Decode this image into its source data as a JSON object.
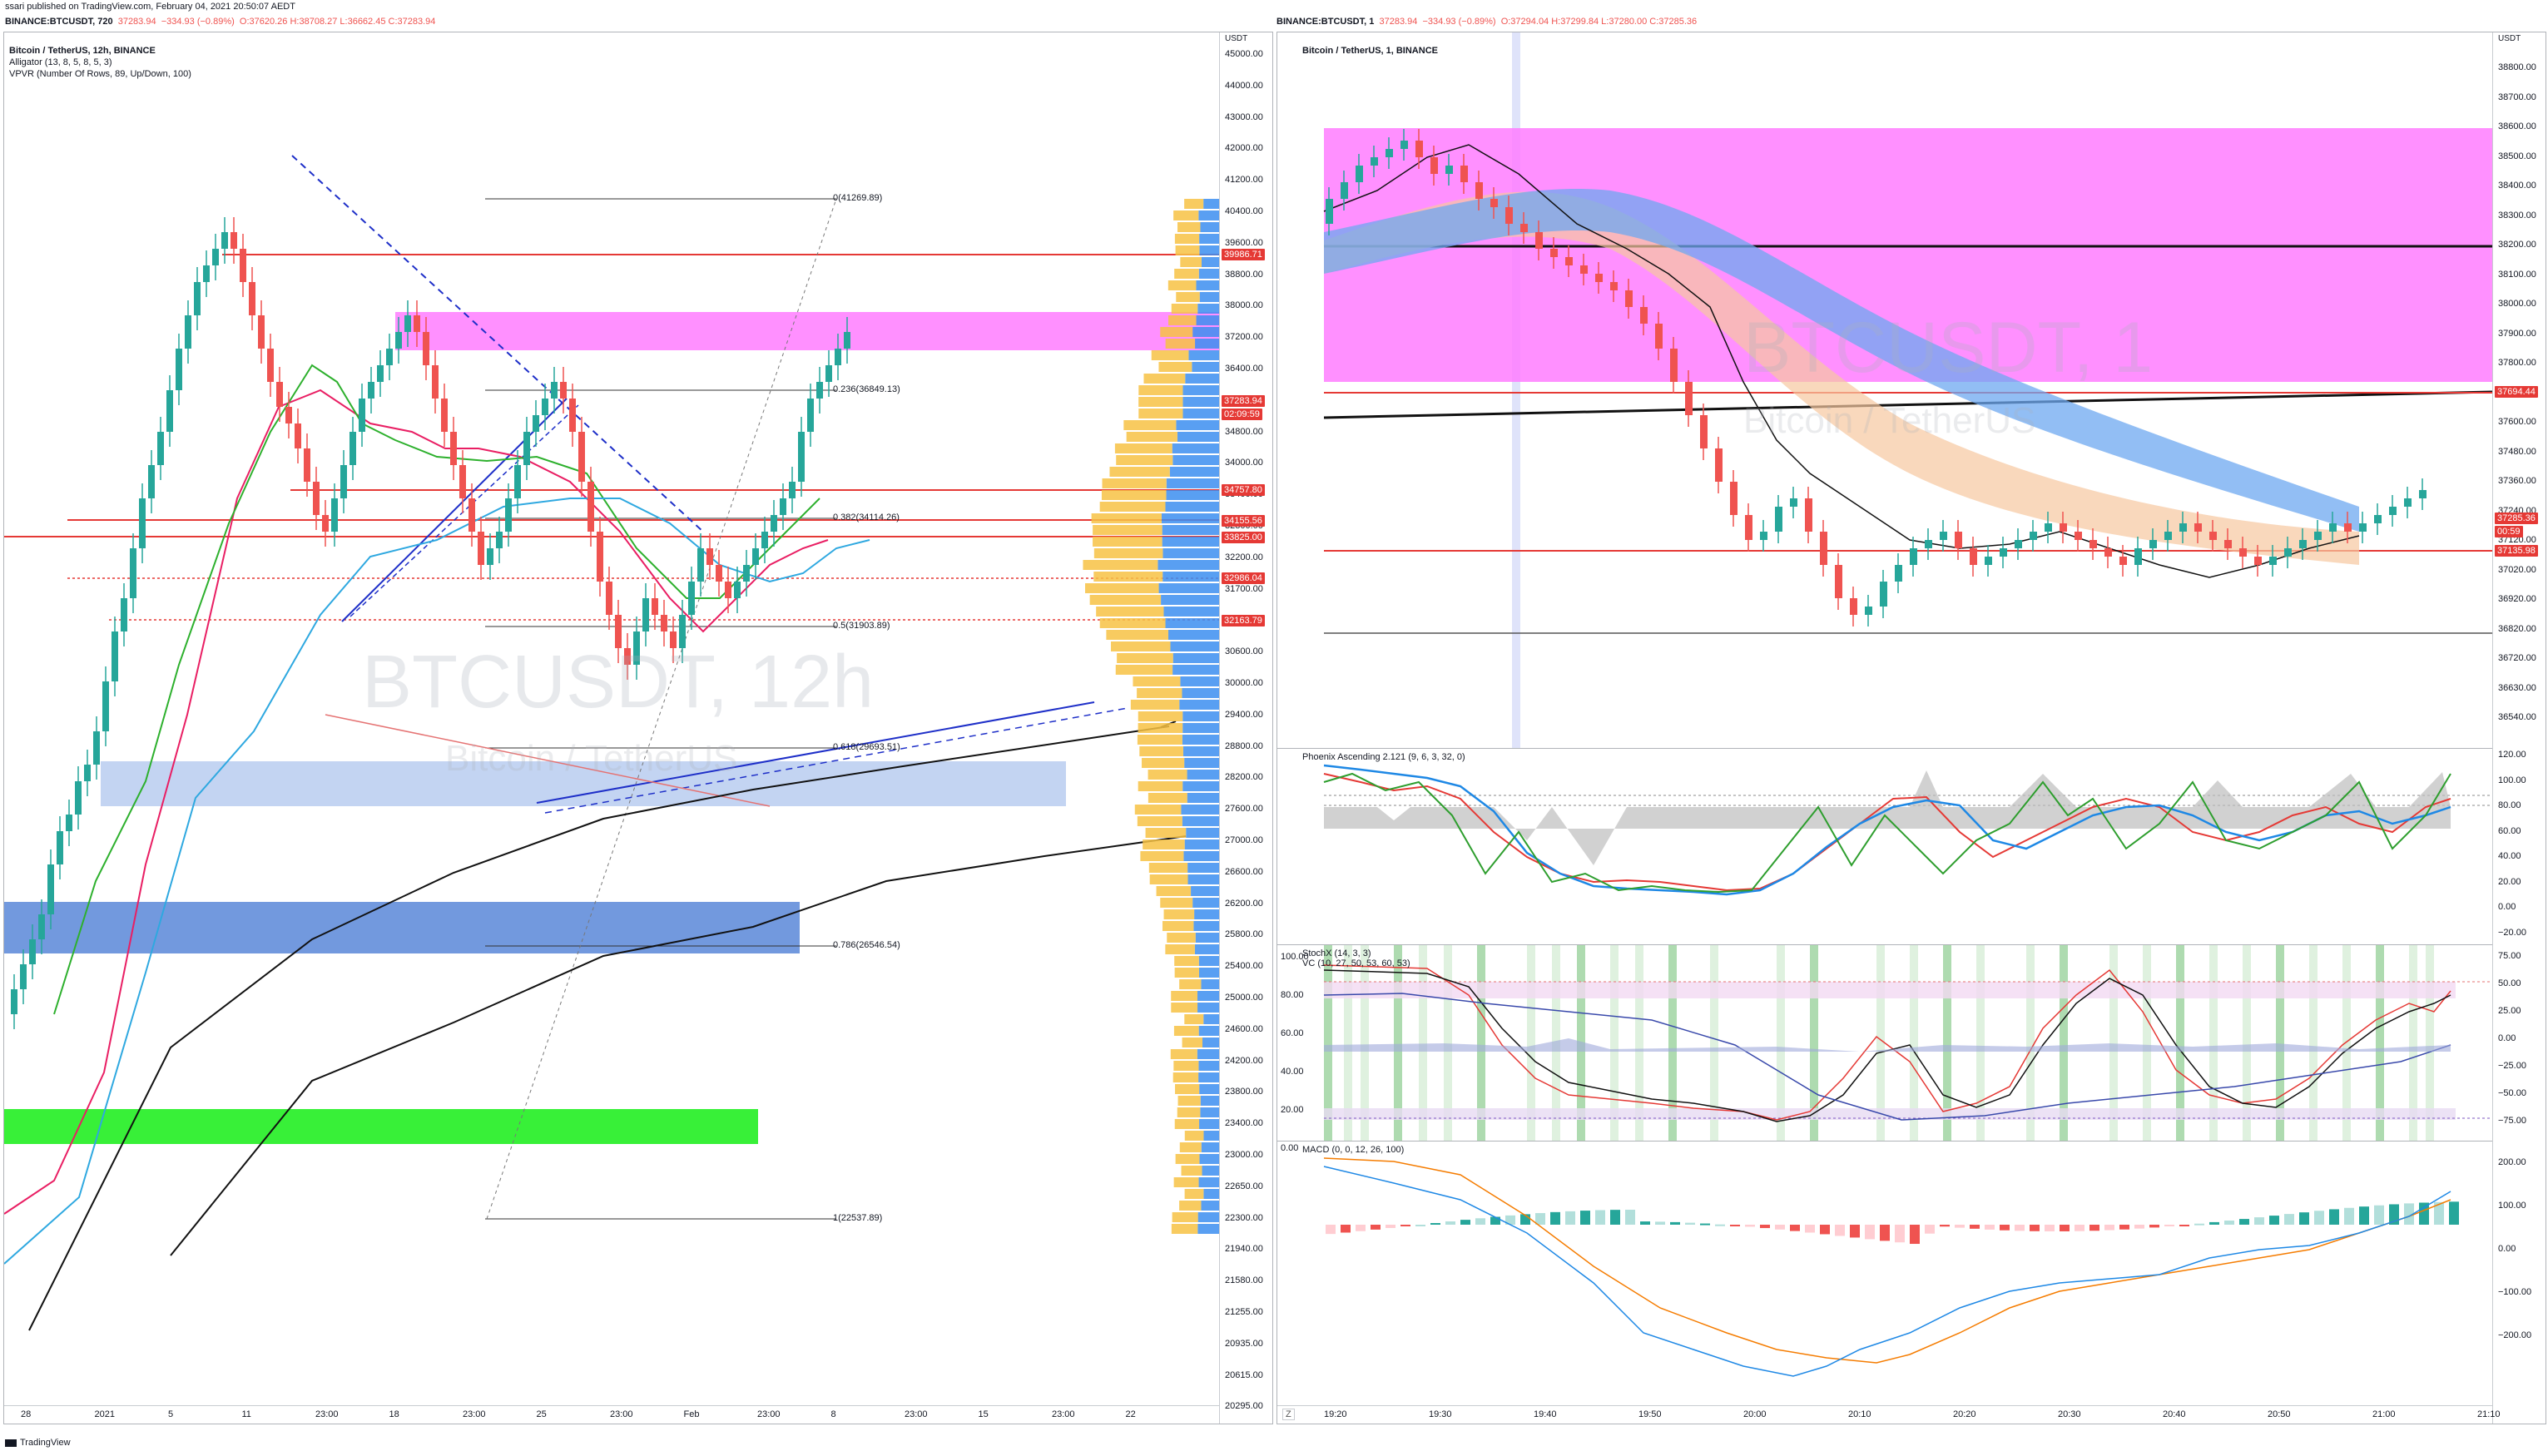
{
  "header": {
    "publisher": "ssari published on TradingView.com, February 04, 2021 20:50:07 AEDT",
    "left_symbol": "BINANCE:BTCUSDT, 720",
    "left_price": "37283.94",
    "left_change": "−334.93 (−0.89%)",
    "left_ohlc": "O:37620.26  H:38708.27  L:36662.45  C:37283.94",
    "right_symbol": "BINANCE:BTCUSDT, 1",
    "right_price": "37283.94",
    "right_change": "−334.93 (−0.89%)",
    "right_ohlc": "O:37294.04  H:37299.84  L:37280.00  C:37285.36"
  },
  "left_chart": {
    "title": "Bitcoin / TetherUS, 12h, BINANCE",
    "ind1": "Alligator (13, 8, 5, 8, 5, 3)",
    "ind2": "VPVR (Number Of Rows, 89, Up/Down, 100)",
    "watermark": "BTCUSDT, 12h",
    "watermark_sub": "Bitcoin / TetherUS",
    "currency": "USDT",
    "price_ticks": [
      "45000.00",
      "44000.00",
      "43000.00",
      "42000.00",
      "41200.00",
      "40400.00",
      "39600.00",
      "38800.00",
      "38000.00",
      "37200.00",
      "36400.00",
      "35600.00",
      "34800.00",
      "34000.00",
      "33400.00",
      "32800.00",
      "32200.00",
      "31700.00",
      "31200.00",
      "30600.00",
      "30000.00",
      "29400.00",
      "28800.00",
      "28200.00",
      "27600.00",
      "27000.00",
      "26600.00",
      "26200.00",
      "25800.00",
      "25400.00",
      "25000.00",
      "24600.00",
      "24200.00",
      "23800.00",
      "23400.00",
      "23000.00",
      "22650.00",
      "22300.00",
      "21940.00",
      "21580.00",
      "21255.00",
      "20935.00",
      "20615.00",
      "20295.00"
    ],
    "price_labels": [
      {
        "text": "39986.71",
        "color": "#e53935"
      },
      {
        "text": "37283.94",
        "color": "#e53935"
      },
      {
        "text": "02:09:59",
        "color": "#e53935"
      },
      {
        "text": "34757.80",
        "color": "#e53935"
      },
      {
        "text": "34155.56",
        "color": "#e53935"
      },
      {
        "text": "33825.00",
        "color": "#e53935"
      },
      {
        "text": "32986.04",
        "color": "#e53935"
      },
      {
        "text": "32163.79",
        "color": "#e53935"
      }
    ],
    "fib_levels": [
      "0(41269.89)",
      "0.236(36849.13)",
      "0.382(34114.26)",
      "0.5(31903.89)",
      "0.618(29693.51)",
      "0.786(26546.54)",
      "1(22537.89)"
    ],
    "time_ticks": [
      "28",
      "2021",
      "5",
      "11",
      "23:00",
      "18",
      "23:00",
      "25",
      "23:00",
      "Feb",
      "23:00",
      "8",
      "23:00",
      "15",
      "23:00",
      "22"
    ]
  },
  "right_chart": {
    "title": "Bitcoin / TetherUS, 1, BINANCE",
    "watermark": "BTCUSDT, 1",
    "watermark_sub": "Bitcoin / TetherUS",
    "currency": "USDT",
    "price_ticks": [
      "38800.00",
      "38700.00",
      "38600.00",
      "38500.00",
      "38400.00",
      "38300.00",
      "38200.00",
      "38100.00",
      "38000.00",
      "37900.00",
      "37800.00",
      "37700.00",
      "37600.00",
      "37480.00",
      "37360.00",
      "37240.00",
      "37120.00",
      "37020.00",
      "36920.00",
      "36820.00",
      "36720.00",
      "36630.00",
      "36540.00"
    ],
    "price_labels": [
      {
        "text": "37694.44",
        "color": "#e53935"
      },
      {
        "text": "37285.36",
        "color": "#e53935"
      },
      {
        "text": "00:59",
        "color": "#e53935"
      },
      {
        "text": "37135.98",
        "color": "#e53935"
      }
    ],
    "phoenix_title": "Phoenix Ascending 2.121 (9, 6, 3, 32, 0)",
    "phoenix_ticks": [
      "120.00",
      "100.00",
      "80.00",
      "60.00",
      "40.00",
      "20.00",
      "0.00",
      "−20.00"
    ],
    "stoch_title": "StochX (14, 3, 3)",
    "stoch_sub": "VC (10, 27, 50, 53, 60, 53)",
    "stoch_ticks_left": [
      "100.00",
      "80.00",
      "60.00",
      "40.00",
      "20.00",
      "0.00"
    ],
    "stoch_ticks_right": [
      "75.00",
      "50.00",
      "25.00",
      "0.00",
      "−25.00",
      "−50.00",
      "−75.00"
    ],
    "macd_title": "MACD (0, 0, 12, 26, 100)",
    "macd_ticks": [
      "200.00",
      "100.00",
      "0.00",
      "−100.00",
      "−200.00"
    ],
    "time_ticks": [
      "19:20",
      "19:30",
      "19:40",
      "19:50",
      "20:00",
      "20:10",
      "20:20",
      "20:30",
      "20:40",
      "20:50",
      "21:00",
      "21:10"
    ]
  },
  "footer": {
    "brand": "TradingView",
    "zoom_btn": "Z"
  },
  "colors": {
    "up": "#26a69a",
    "down": "#ef5350",
    "magenta_zone": "#ff77ff",
    "blue_zone": "#4a78d0",
    "green_zone": "#33ee33",
    "label_red": "#e53935"
  }
}
